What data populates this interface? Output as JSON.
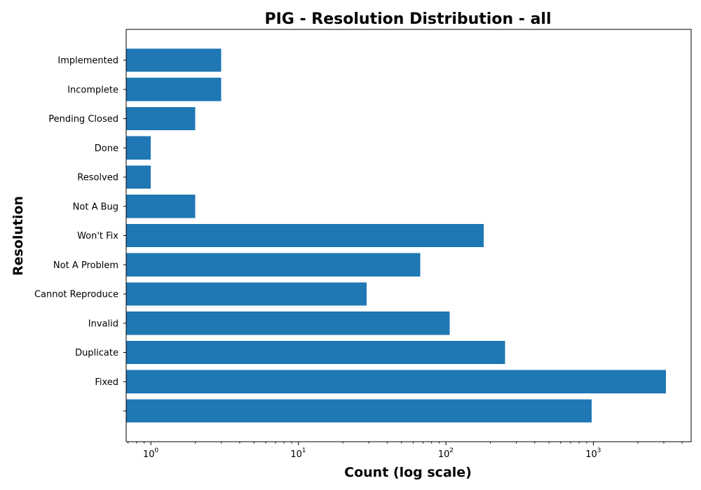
{
  "chart_data": {
    "type": "bar",
    "orientation": "horizontal",
    "title": "PIG - Resolution Distribution - all",
    "xlabel": "Count (log scale)",
    "ylabel": "Resolution",
    "xscale": "log",
    "xlim": [
      0.68,
      4600
    ],
    "x_ticks": [
      {
        "value": 1,
        "base": "10",
        "exp": "0"
      },
      {
        "value": 10,
        "base": "10",
        "exp": "1"
      },
      {
        "value": 100,
        "base": "10",
        "exp": "2"
      },
      {
        "value": 1000,
        "base": "10",
        "exp": "3"
      }
    ],
    "categories": [
      "Implemented",
      "Incomplete",
      "Pending Closed",
      "Done",
      "Resolved",
      "Not A Bug",
      "Won't Fix",
      "Not A Problem",
      "Cannot Reproduce",
      "Invalid",
      "Duplicate",
      "Fixed",
      ""
    ],
    "values": [
      3,
      3,
      2,
      1,
      1,
      2,
      180,
      67,
      29,
      106,
      252,
      3110,
      970
    ],
    "bar_color": "#1f77b4",
    "grid": false,
    "legend": "none"
  }
}
